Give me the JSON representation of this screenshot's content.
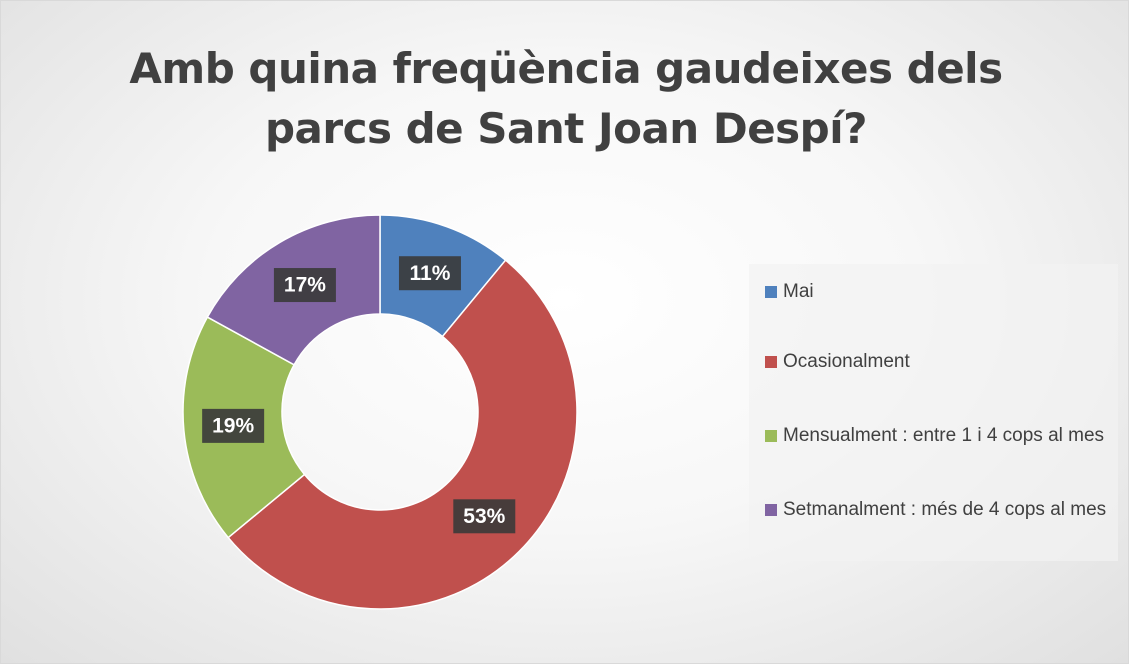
{
  "chart_data": {
    "type": "donut",
    "title": "Amb quina freqüència gaudeixes dels parcs de Sant Joan Despí?",
    "categories": [
      "Mai",
      "Ocasionalment",
      "Mensualment : entre 1 i 4 cops al mes",
      "Setmanalment : més de 4 cops al mes"
    ],
    "values": [
      11,
      53,
      19,
      17
    ],
    "value_labels": [
      "11%",
      "53%",
      "19%",
      "17%"
    ],
    "colors": [
      "#4f81bd",
      "#c0504d",
      "#9bbb59",
      "#8064a2"
    ],
    "legend": "right"
  }
}
